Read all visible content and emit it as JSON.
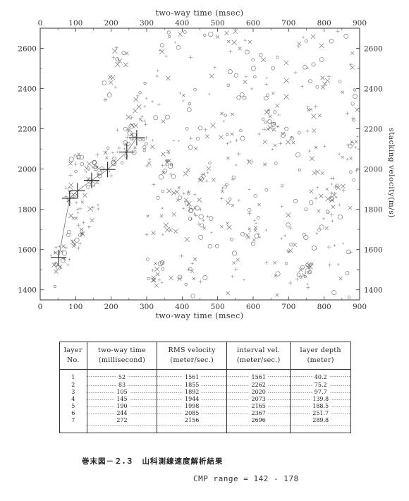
{
  "chart_data": {
    "type": "scatter",
    "title": "",
    "xlabel": "two-way time (msec)",
    "ylabel": "stacking velocity(m/s)",
    "xlim": [
      0,
      900
    ],
    "ylim": [
      1350,
      2700
    ],
    "x_ticks": [
      "0",
      "100",
      "200",
      "300",
      "400",
      "500",
      "600",
      "700",
      "800",
      "900"
    ],
    "y_ticks": [
      "1400",
      "1600",
      "1800",
      "2000",
      "2200",
      "2400",
      "2600"
    ],
    "picked_series": {
      "x": [
        52,
        83,
        105,
        145,
        190,
        244,
        272
      ],
      "y": [
        1561,
        1855,
        1892,
        1944,
        1998,
        2085,
        2156
      ]
    },
    "scatter_clusters": [
      {
        "x": 50,
        "y": 1550
      },
      {
        "x": 85,
        "y": 1880
      },
      {
        "x": 105,
        "y": 2020
      },
      {
        "x": 140,
        "y": 1990
      },
      {
        "x": 170,
        "y": 2030
      },
      {
        "x": 195,
        "y": 2400
      },
      {
        "x": 225,
        "y": 2550
      },
      {
        "x": 250,
        "y": 2140
      },
      {
        "x": 300,
        "y": 2100
      },
      {
        "x": 330,
        "y": 1480
      },
      {
        "x": 360,
        "y": 2020
      },
      {
        "x": 400,
        "y": 1850
      },
      {
        "x": 440,
        "y": 1780
      },
      {
        "x": 470,
        "y": 2000
      },
      {
        "x": 530,
        "y": 1880
      },
      {
        "x": 600,
        "y": 1700
      },
      {
        "x": 650,
        "y": 2240
      },
      {
        "x": 700,
        "y": 1650
      },
      {
        "x": 750,
        "y": 1480
      },
      {
        "x": 820,
        "y": 1900
      },
      {
        "x": 880,
        "y": 2100
      }
    ]
  },
  "table": {
    "headers": [
      [
        "layer",
        "No."
      ],
      [
        "two-way time",
        "(millisecond)"
      ],
      [
        "RMS velocity",
        "(meter/sec.)"
      ],
      [
        "interval vel.",
        "(meter/sec.)"
      ],
      [
        "layer depth",
        "(meter)"
      ]
    ],
    "rows": [
      [
        "1",
        "52",
        "1561",
        "1561",
        "40.2"
      ],
      [
        "2",
        "83",
        "1855",
        "2262",
        "75.2"
      ],
      [
        "3",
        "105",
        "1892",
        "2020",
        "97.7"
      ],
      [
        "4",
        "145",
        "1944",
        "2073",
        "139.8"
      ],
      [
        "5",
        "190",
        "1998",
        "2165",
        "188.5"
      ],
      [
        "6",
        "244",
        "2085",
        "2367",
        "251.7"
      ],
      [
        "7",
        "272",
        "2156",
        "2696",
        "289.8"
      ]
    ]
  },
  "caption": "巻末図－２.３　山科測線速度解析結果",
  "cmp_range": "CMP range = 142 - 178"
}
